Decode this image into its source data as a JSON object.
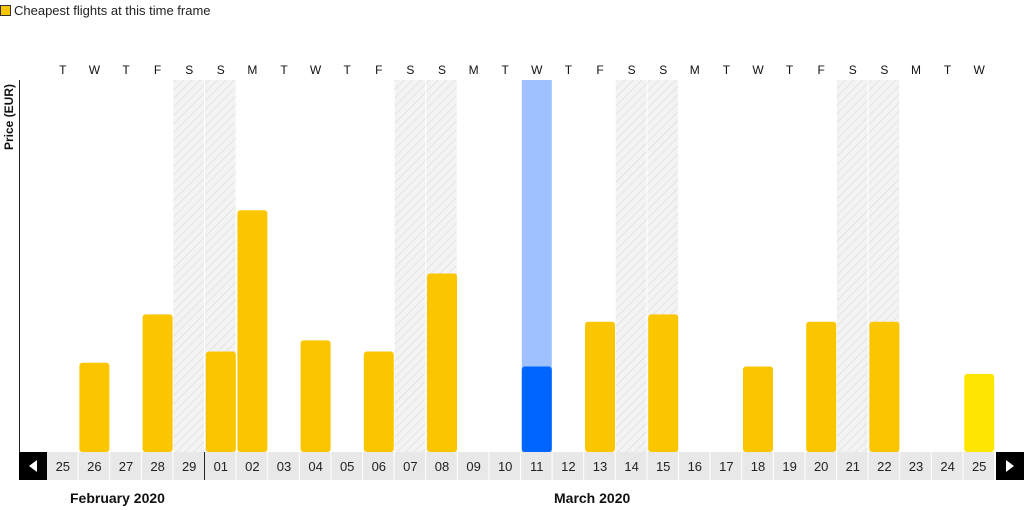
{
  "legend": {
    "label": "Cheapest flights at this time frame"
  },
  "months": [
    "February 2020",
    "March 2020"
  ],
  "colors": {
    "bar": "#fbc600",
    "selected_top": "#9fc1ff",
    "selected_bottom": "#0064ff",
    "highlight": "#ffe600",
    "weekend": "#f1f1f1"
  },
  "chart_data": {
    "type": "bar",
    "ylabel": "Price (EUR)",
    "categories": [
      "25",
      "26",
      "27",
      "28",
      "29",
      "01",
      "02",
      "03",
      "04",
      "05",
      "06",
      "07",
      "08",
      "09",
      "10",
      "11",
      "12",
      "13",
      "14",
      "15",
      "16",
      "17",
      "18",
      "19",
      "20",
      "21",
      "22",
      "23",
      "24",
      "25"
    ],
    "weekdays": [
      "T",
      "W",
      "T",
      "F",
      "S",
      "S",
      "M",
      "T",
      "W",
      "T",
      "F",
      "S",
      "S",
      "M",
      "T",
      "W",
      "T",
      "F",
      "S",
      "S",
      "M",
      "T",
      "W",
      "T",
      "F",
      "S",
      "S",
      "M",
      "T",
      "W"
    ],
    "weekend": [
      false,
      false,
      false,
      false,
      true,
      true,
      false,
      false,
      false,
      false,
      false,
      true,
      true,
      false,
      false,
      false,
      false,
      false,
      true,
      true,
      false,
      false,
      false,
      false,
      false,
      true,
      true,
      false,
      false,
      false
    ],
    "values": [
      null,
      24,
      null,
      37,
      null,
      27,
      65,
      null,
      30,
      null,
      27,
      null,
      48,
      null,
      null,
      23,
      null,
      35,
      null,
      37,
      null,
      null,
      23,
      null,
      35,
      null,
      35,
      null,
      null,
      21
    ],
    "selected_index": 15,
    "highlight_index": 29,
    "ylim": [
      0,
      100
    ]
  },
  "nav": {
    "prev": "previous",
    "next": "next"
  }
}
